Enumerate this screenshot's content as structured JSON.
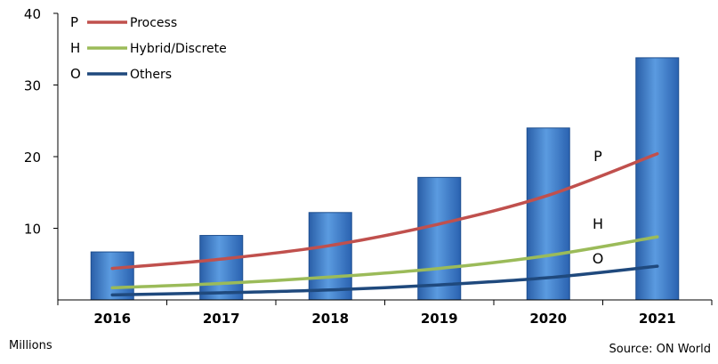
{
  "chart_data": {
    "type": "bar",
    "categories": [
      "2016",
      "2017",
      "2018",
      "2019",
      "2020",
      "2021"
    ],
    "values": [
      6.7,
      9.0,
      12.2,
      17.1,
      24.0,
      33.8
    ],
    "ylim": [
      0,
      40
    ],
    "yticks": [
      10,
      20,
      30,
      40
    ],
    "ytick_labels": [
      "10",
      "20",
      "30",
      "40"
    ],
    "grid": false,
    "units_note": "Millions",
    "source_note": "Source: ON World",
    "bar_color": "#3a78c8",
    "lines": [
      {
        "name": "Process",
        "letter": "P",
        "color": "#c0504d",
        "values": [
          4.4,
          5.7,
          7.6,
          10.6,
          14.6,
          20.4
        ]
      },
      {
        "name": "Hybrid/Discrete",
        "letter": "H",
        "color": "#9bbb59",
        "values": [
          1.7,
          2.3,
          3.2,
          4.4,
          6.2,
          8.8
        ]
      },
      {
        "name": "Others",
        "letter": "O",
        "color": "#1f497d",
        "values": [
          0.7,
          1.0,
          1.4,
          2.1,
          3.1,
          4.7
        ]
      }
    ],
    "legend_position": "top-left"
  }
}
